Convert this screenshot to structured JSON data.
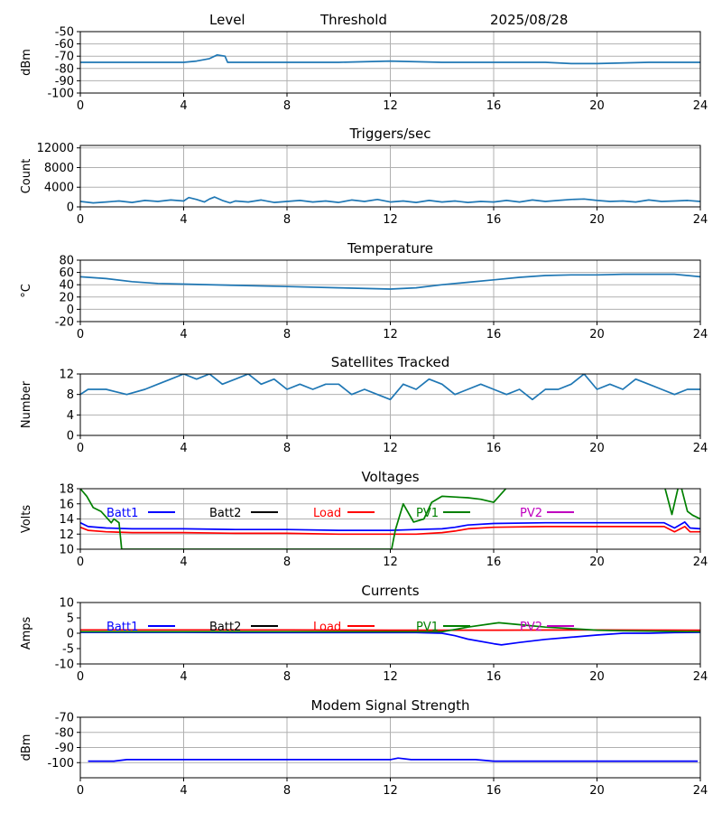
{
  "header": {
    "left": "Level",
    "middle": "Threshold",
    "right": "2025/08/28"
  },
  "x_ticks": [
    "0",
    "4",
    "8",
    "12",
    "16",
    "20",
    "24"
  ],
  "colors": {
    "default": "#1f77b4",
    "batt1": "#0000ff",
    "batt2": "#000000",
    "load": "#ff0000",
    "pv1": "#008000",
    "pv2": "#bf00bf",
    "grid": "#b0b0b0"
  },
  "chart_data": [
    {
      "type": "line",
      "title": "",
      "xlabel": "",
      "ylabel": "dBm",
      "xlim": [
        0,
        24
      ],
      "ylim": [
        -100,
        -50
      ],
      "yticks": [
        "-50",
        "-60",
        "-70",
        "-80",
        "-90",
        "-100"
      ],
      "grid": true,
      "series": [
        {
          "x": [
            0,
            2,
            4,
            4.5,
            5.0,
            5.3,
            5.6,
            5.7,
            6,
            8,
            10,
            12,
            14,
            16,
            18,
            19,
            20,
            22,
            24
          ],
          "y": [
            -75,
            -75,
            -75,
            -74,
            -72,
            -69,
            -70,
            -75,
            -75,
            -75,
            -75,
            -74,
            -75,
            -75,
            -75,
            -76,
            -76,
            -75,
            -75
          ]
        }
      ]
    },
    {
      "type": "line",
      "title": "Triggers/sec",
      "xlabel": "",
      "ylabel": "Count",
      "xlim": [
        0,
        24
      ],
      "ylim": [
        0,
        12500
      ],
      "yticks": [
        "0",
        "4000",
        "8000",
        "12000"
      ],
      "grid": true,
      "series": [
        {
          "x": [
            0,
            0.5,
            1,
            1.5,
            2,
            2.5,
            3,
            3.5,
            4,
            4.2,
            4.5,
            4.8,
            5,
            5.2,
            5.5,
            5.8,
            6,
            6.5,
            7,
            7.5,
            8,
            8.5,
            9,
            9.5,
            10,
            10.5,
            11,
            11.5,
            12,
            12.5,
            13,
            13.5,
            14,
            14.5,
            15,
            15.5,
            16,
            16.5,
            17,
            17.5,
            18,
            18.5,
            19,
            19.5,
            20,
            20.5,
            21,
            21.5,
            22,
            22.5,
            23,
            23.5,
            24
          ],
          "y": [
            1100,
            800,
            1000,
            1200,
            900,
            1300,
            1100,
            1400,
            1200,
            1900,
            1500,
            1000,
            1600,
            2000,
            1300,
            800,
            1200,
            1000,
            1400,
            900,
            1100,
            1300,
            1000,
            1200,
            900,
            1400,
            1100,
            1500,
            1000,
            1200,
            900,
            1300,
            1000,
            1200,
            900,
            1100,
            1000,
            1300,
            1000,
            1400,
            1100,
            1300,
            1500,
            1600,
            1300,
            1100,
            1200,
            1000,
            1400,
            1100,
            1200,
            1300,
            1100
          ]
        }
      ]
    },
    {
      "type": "line",
      "title": "Temperature",
      "xlabel": "",
      "ylabel": "°C",
      "xlim": [
        0,
        24
      ],
      "ylim": [
        -20,
        80
      ],
      "yticks": [
        "-20",
        "0",
        "20",
        "40",
        "60",
        "80"
      ],
      "grid": true,
      "series": [
        {
          "x": [
            0,
            1,
            2,
            3,
            4,
            6,
            8,
            10,
            12,
            13,
            14,
            15,
            16,
            17,
            18,
            19,
            20,
            21,
            22,
            23,
            24
          ],
          "y": [
            53,
            50,
            45,
            42,
            41,
            39,
            37,
            35,
            33,
            35,
            40,
            44,
            48,
            52,
            55,
            56,
            56,
            57,
            57,
            57,
            53
          ]
        }
      ]
    },
    {
      "type": "line",
      "title": "Satellites Tracked",
      "xlabel": "",
      "ylabel": "Number",
      "xlim": [
        0,
        24
      ],
      "ylim": [
        0,
        12
      ],
      "yticks": [
        "0",
        "4",
        "8",
        "12"
      ],
      "grid": true,
      "series": [
        {
          "x": [
            0,
            0.3,
            1,
            1.8,
            2.5,
            3,
            3.5,
            4,
            4.5,
            5,
            5.5,
            6,
            6.5,
            7,
            7.5,
            8,
            8.5,
            9,
            9.5,
            10,
            10.5,
            11,
            11.5,
            12,
            12.5,
            13,
            13.5,
            14,
            14.5,
            15,
            15.5,
            16,
            16.5,
            17,
            17.5,
            18,
            18.5,
            19,
            19.5,
            20,
            20.5,
            21,
            21.5,
            22,
            22.5,
            23,
            23.5,
            24
          ],
          "y": [
            8,
            9,
            9,
            8,
            9,
            10,
            11,
            12,
            11,
            12,
            10,
            11,
            12,
            10,
            11,
            9,
            10,
            9,
            10,
            10,
            8,
            9,
            8,
            7,
            10,
            9,
            11,
            10,
            8,
            9,
            10,
            9,
            8,
            9,
            7,
            9,
            9,
            10,
            12,
            9,
            10,
            9,
            11,
            10,
            9,
            8,
            9,
            9
          ]
        }
      ]
    },
    {
      "type": "line",
      "title": "Voltages",
      "xlabel": "",
      "ylabel": "Volts",
      "xlim": [
        0,
        24
      ],
      "ylim": [
        10,
        18
      ],
      "yticks": [
        "10",
        "12",
        "14",
        "16",
        "18"
      ],
      "grid": true,
      "legend": [
        "Batt1",
        "Batt2",
        "Load",
        "PV1",
        "PV2"
      ],
      "series": [
        {
          "name": "Batt1",
          "x": [
            0,
            0.3,
            1,
            2,
            4,
            6,
            8,
            10,
            12,
            13,
            14,
            14.5,
            15,
            16,
            18,
            20,
            22,
            22.6,
            23,
            23.4,
            23.6,
            24
          ],
          "y": [
            13.5,
            13,
            12.8,
            12.7,
            12.7,
            12.6,
            12.6,
            12.5,
            12.5,
            12.6,
            12.7,
            12.9,
            13.2,
            13.4,
            13.5,
            13.5,
            13.5,
            13.5,
            12.8,
            13.6,
            12.8,
            12.7
          ]
        },
        {
          "name": "Load",
          "x": [
            0,
            0.3,
            1,
            2,
            4,
            6,
            8,
            10,
            12,
            13,
            14,
            14.5,
            15,
            16,
            18,
            20,
            22,
            22.6,
            23,
            23.4,
            23.6,
            24
          ],
          "y": [
            12.9,
            12.5,
            12.3,
            12.2,
            12.2,
            12.1,
            12.1,
            12.0,
            12.0,
            12.0,
            12.2,
            12.4,
            12.7,
            12.9,
            13.0,
            13.0,
            13.0,
            13.0,
            12.3,
            13.0,
            12.3,
            12.3
          ]
        },
        {
          "name": "PV1",
          "x": [
            0,
            0.25,
            0.5,
            0.8,
            1.2,
            1.3,
            1.5,
            1.6,
            12.05,
            12.2,
            12.5,
            12.9,
            13.3,
            13.6,
            14.0,
            14.5,
            15.0,
            15.5,
            16.0,
            16.6,
            22.6,
            22.9,
            23.2,
            23.5,
            23.7,
            24
          ],
          "y": [
            18,
            17,
            15.5,
            15,
            13.5,
            14,
            13.5,
            10,
            10,
            12.6,
            16,
            13.6,
            14,
            16.2,
            17,
            16.9,
            16.8,
            16.6,
            16.2,
            18.5,
            18.5,
            14.6,
            19,
            15,
            14.5,
            14
          ]
        },
        {
          "name": "Batt2",
          "x": [],
          "y": []
        },
        {
          "name": "PV2",
          "x": [],
          "y": []
        }
      ]
    },
    {
      "type": "line",
      "title": "Currents",
      "xlabel": "",
      "ylabel": "Amps",
      "xlim": [
        0,
        24
      ],
      "ylim": [
        -10,
        10
      ],
      "yticks": [
        "-10",
        "-5",
        "0",
        "5",
        "10"
      ],
      "grid": false,
      "legend": [
        "Batt1",
        "Batt2",
        "Load",
        "PV1",
        "PV2"
      ],
      "series": [
        {
          "name": "Batt1",
          "x": [
            0,
            2,
            4,
            6,
            8,
            10,
            12,
            13,
            14,
            14.5,
            15,
            16,
            16.3,
            17,
            18,
            19,
            20,
            21,
            22,
            23,
            24
          ],
          "y": [
            0.3,
            0.3,
            0.3,
            0.2,
            0.2,
            0.2,
            0.2,
            0.2,
            0,
            -0.8,
            -1.9,
            -3.4,
            -3.8,
            -3.0,
            -2.0,
            -1.3,
            -0.6,
            0,
            0,
            0.2,
            0.3
          ]
        },
        {
          "name": "Load",
          "x": [
            0,
            4,
            8,
            12,
            16,
            20,
            24
          ],
          "y": [
            1.1,
            1.1,
            1.1,
            1.0,
            1.0,
            1.1,
            1.0
          ]
        },
        {
          "name": "PV1",
          "x": [
            0,
            2,
            4,
            6,
            8,
            10,
            12,
            13,
            14,
            14.5,
            15,
            16,
            16.2,
            17,
            18,
            19,
            20,
            21,
            22,
            23,
            24
          ],
          "y": [
            0.5,
            0.5,
            0.5,
            0.5,
            0.5,
            0.5,
            0.5,
            0.5,
            0.5,
            1.2,
            2.0,
            3.2,
            3.4,
            2.8,
            2.0,
            1.5,
            1.0,
            0.8,
            0.7,
            0.6,
            0.5
          ]
        },
        {
          "name": "Batt2",
          "x": [],
          "y": []
        },
        {
          "name": "PV2",
          "x": [],
          "y": []
        }
      ]
    },
    {
      "type": "line",
      "title": "Modem Signal Strength",
      "xlabel": "",
      "ylabel": "dBm",
      "xlim": [
        0,
        24
      ],
      "ylim": [
        -110,
        -70
      ],
      "yticks": [
        "-70",
        "-80",
        "-90",
        "-100"
      ],
      "grid": true,
      "series": [
        {
          "name": "",
          "x": [
            0.3,
            1.3,
            1.8,
            4,
            8,
            12,
            12.3,
            12.8,
            15,
            15.3,
            16,
            18,
            20,
            22,
            23.9
          ],
          "y": [
            -99,
            -99,
            -98,
            -98,
            -98,
            -98,
            -97,
            -98,
            -98,
            -98,
            -99,
            -99,
            -99,
            -99,
            -99
          ]
        }
      ]
    }
  ]
}
